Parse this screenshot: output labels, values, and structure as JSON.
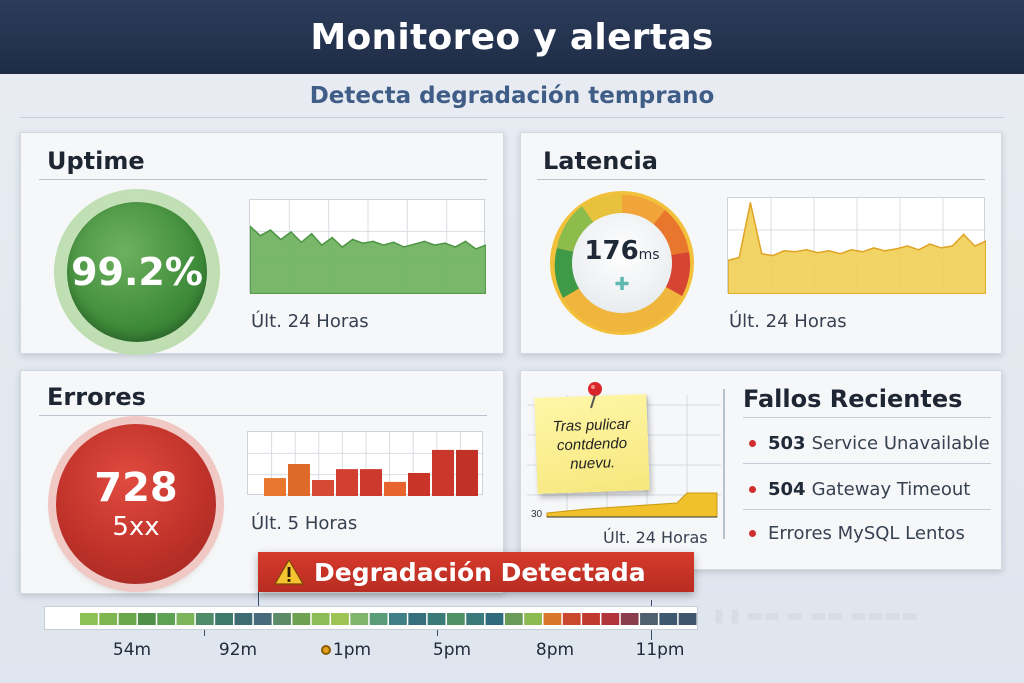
{
  "header": {
    "title": "Monitoreo y alertas",
    "subtitle": "Detecta degradación temprano"
  },
  "uptime": {
    "title": "Uptime",
    "value": "99.2%",
    "caption": "Últ. 24 Horas",
    "series_color": "#6ab05a",
    "series": [
      0.72,
      0.62,
      0.68,
      0.58,
      0.66,
      0.55,
      0.64,
      0.52,
      0.6,
      0.5,
      0.58,
      0.54,
      0.56,
      0.52,
      0.55,
      0.5,
      0.53,
      0.56,
      0.52,
      0.54,
      0.5,
      0.56,
      0.48,
      0.52
    ]
  },
  "latency": {
    "title": "Latencia",
    "value": "176",
    "unit": "ms",
    "caption": "Últ. 24 Horas",
    "series_color": "#f1cf55",
    "series": [
      0.35,
      0.38,
      0.95,
      0.42,
      0.4,
      0.45,
      0.44,
      0.46,
      0.43,
      0.45,
      0.42,
      0.46,
      0.44,
      0.48,
      0.45,
      0.47,
      0.5,
      0.46,
      0.52,
      0.48,
      0.5,
      0.62,
      0.5,
      0.55
    ]
  },
  "errors": {
    "title": "Errores",
    "value": "728",
    "unit": "5xx",
    "caption": "Últ. 5 Horas",
    "bars": [
      0.28,
      0.5,
      0.25,
      0.42,
      0.42,
      0.22,
      0.36,
      0.72,
      0.72
    ],
    "bar_colors": [
      "#e8762c",
      "#de6a2a",
      "#d44a35",
      "#d1402f",
      "#cc3a2d",
      "#e8642e",
      "#c93428",
      "#c9382b",
      "#c23126"
    ]
  },
  "failures": {
    "title": "Fallos Recientes",
    "note": "Tras pulicar contdendo nuevu.",
    "chart_caption": "Últ. 24 Horas",
    "axis_value": "30",
    "items": [
      {
        "code": "503",
        "text": "Service Unavailable"
      },
      {
        "code": "504",
        "text": "Gateway Timeout"
      },
      {
        "code": "",
        "text": "Errores MySQL Lentos"
      }
    ]
  },
  "alert": {
    "label": "Degradación Detectada"
  },
  "timeline": {
    "labels": [
      "54m",
      "92m",
      "1pm",
      "5pm",
      "8pm",
      "11pm"
    ],
    "segment_colors": [
      "#8cc153",
      "#7fb54f",
      "#6aa64a",
      "#4f8f48",
      "#5ea153",
      "#7cb55b",
      "#4e8c6a",
      "#3d7a6a",
      "#3f6b72",
      "#476b7a",
      "#5b8c67",
      "#6fa152",
      "#8bbd56",
      "#9cc354",
      "#7fb56a",
      "#5a9b78",
      "#3f7f86",
      "#36707f",
      "#3a7a77",
      "#4f9264",
      "#3b7a7a",
      "#2f6a7d",
      "#6a9a58",
      "#8dbb52",
      "#d9762c",
      "#c9482e",
      "#c23a2d",
      "#b1353a",
      "#8a3d4c",
      "#50606f",
      "#3d5870",
      "#40566c"
    ]
  }
}
